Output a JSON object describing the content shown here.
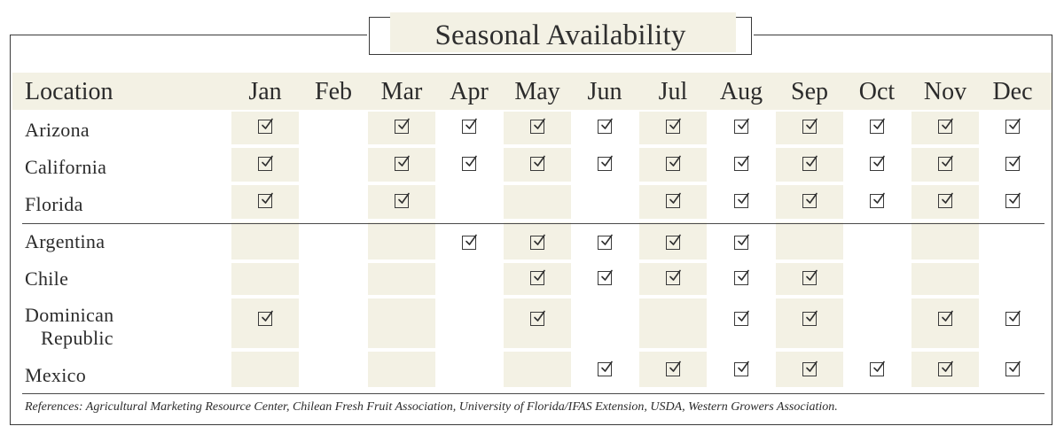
{
  "title": "Seasonal Availability",
  "header": {
    "location": "Location",
    "months": [
      "Jan",
      "Feb",
      "Mar",
      "Apr",
      "May",
      "Jun",
      "Jul",
      "Aug",
      "Sep",
      "Oct",
      "Nov",
      "Dec"
    ]
  },
  "rows": [
    {
      "location": [
        "Arizona"
      ],
      "available": [
        1,
        0,
        1,
        1,
        1,
        1,
        1,
        1,
        1,
        1,
        1,
        1
      ]
    },
    {
      "location": [
        "California"
      ],
      "available": [
        1,
        0,
        1,
        1,
        1,
        1,
        1,
        1,
        1,
        1,
        1,
        1
      ]
    },
    {
      "location": [
        "Florida"
      ],
      "available": [
        1,
        0,
        1,
        0,
        0,
        0,
        1,
        1,
        1,
        1,
        1,
        1
      ]
    },
    {
      "location": [
        "Argentina"
      ],
      "available": [
        0,
        0,
        0,
        1,
        1,
        1,
        1,
        1,
        0,
        0,
        0,
        0
      ]
    },
    {
      "location": [
        "Chile"
      ],
      "available": [
        0,
        0,
        0,
        0,
        1,
        1,
        1,
        1,
        1,
        0,
        0,
        0
      ]
    },
    {
      "location": [
        "Dominican",
        "Republic"
      ],
      "available": [
        1,
        0,
        0,
        0,
        1,
        0,
        0,
        1,
        1,
        0,
        1,
        1
      ]
    },
    {
      "location": [
        "Mexico"
      ],
      "available": [
        0,
        0,
        0,
        0,
        0,
        1,
        1,
        1,
        1,
        1,
        1,
        1
      ]
    }
  ],
  "references": "References: Agricultural Marketing Resource Center, Chilean Fresh Fruit Association, University of Florida/IFAS Extension, USDA, Western  Growers Association.",
  "colors": {
    "shade": "#f3f1e4",
    "ink": "#2b2b2b",
    "border": "#3a3a3a"
  },
  "icons": {
    "available": "checkbox-checked-icon"
  }
}
